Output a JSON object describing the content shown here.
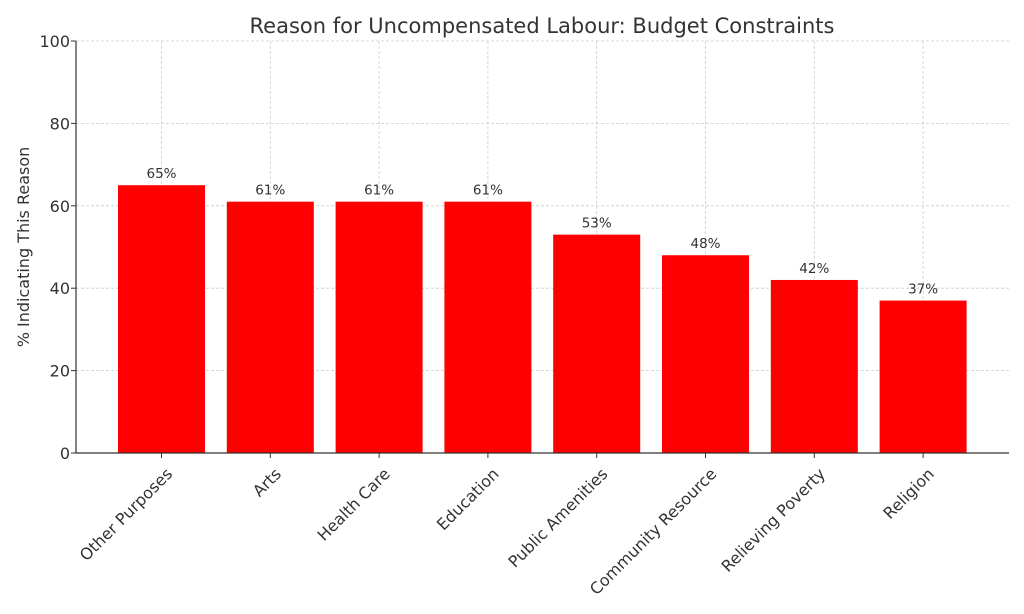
{
  "chart_data": {
    "type": "bar",
    "title": "Reason for Uncompensated Labour: Budget Constraints",
    "xlabel": "",
    "ylabel": "% Indicating This Reason",
    "categories": [
      "Other Purposes",
      "Arts",
      "Health Care",
      "Education",
      "Public Amenities",
      "Community Resource",
      "Relieving Poverty",
      "Religion"
    ],
    "values": [
      65,
      61,
      61,
      61,
      53,
      48,
      42,
      37
    ],
    "data_labels": [
      "65%",
      "61%",
      "61%",
      "61%",
      "53%",
      "48%",
      "42%",
      "37%"
    ],
    "ylim": [
      0,
      100
    ],
    "yticks": [
      0,
      20,
      40,
      60,
      80,
      100
    ],
    "ytick_labels": [
      "0",
      "20",
      "40",
      "60",
      "80",
      "100"
    ],
    "grid": true,
    "bar_color": "#ff0000",
    "legend": "none"
  }
}
